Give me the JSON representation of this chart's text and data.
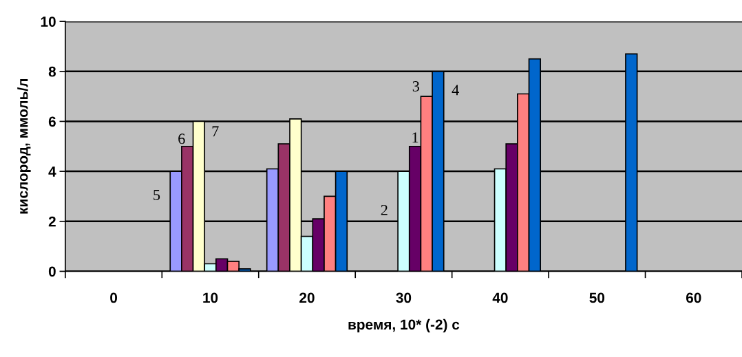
{
  "chart_data": {
    "type": "bar",
    "xlabel": "время, 10* (-2) с",
    "ylabel": "кислород, ммоль/л",
    "categories": [
      "0",
      "10",
      "20",
      "30",
      "40",
      "50",
      "60"
    ],
    "series": [
      {
        "name": "5",
        "color": "#9999ff",
        "values": [
          null,
          4.0,
          4.1,
          null,
          null,
          null,
          null
        ]
      },
      {
        "name": "6",
        "color": "#993366",
        "values": [
          null,
          5.0,
          5.1,
          null,
          null,
          null,
          null
        ]
      },
      {
        "name": "7",
        "color": "#ffffcc",
        "values": [
          null,
          6.0,
          6.1,
          null,
          null,
          null,
          null
        ]
      },
      {
        "name": "2",
        "color": "#ccffff",
        "values": [
          null,
          0.3,
          1.4,
          4.0,
          4.1,
          null,
          null
        ]
      },
      {
        "name": "1",
        "color": "#660066",
        "values": [
          null,
          0.5,
          2.1,
          5.0,
          5.1,
          null,
          null
        ]
      },
      {
        "name": "3",
        "color": "#ff8080",
        "values": [
          null,
          0.4,
          3.0,
          7.0,
          7.1,
          null,
          null
        ]
      },
      {
        "name": "4",
        "color": "#0066cc",
        "values": [
          null,
          0.1,
          4.0,
          8.0,
          8.5,
          8.7,
          null
        ]
      }
    ],
    "ylim": [
      0,
      10
    ],
    "yticks": [
      0,
      2,
      4,
      6,
      8,
      10
    ],
    "grid": "y",
    "legend": false
  }
}
